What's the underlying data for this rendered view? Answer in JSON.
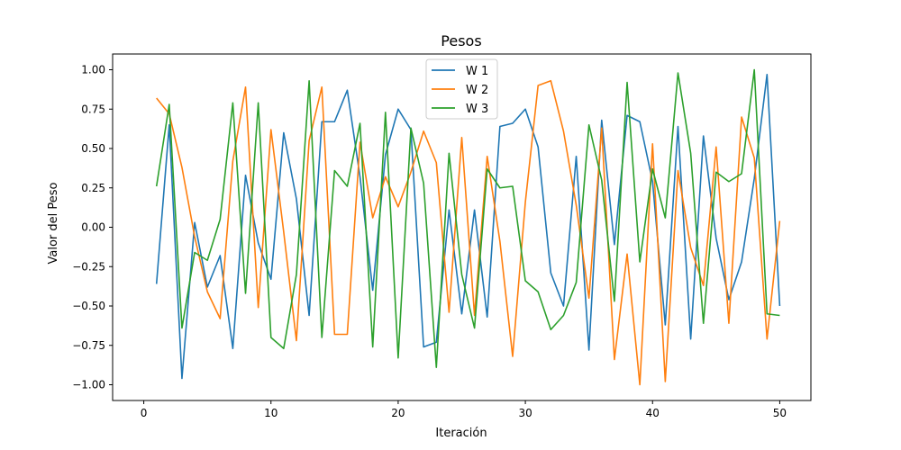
{
  "chart_data": {
    "type": "line",
    "title": "Pesos",
    "xlabel": "Iteración",
    "ylabel": "Valor del Peso",
    "xlim": [
      -2.45,
      52.45
    ],
    "ylim": [
      -1.1,
      1.1
    ],
    "xticks": [
      0,
      10,
      20,
      30,
      40,
      50
    ],
    "yticks": [
      -1.0,
      -0.75,
      -0.5,
      -0.25,
      0.0,
      0.25,
      0.5,
      0.75,
      1.0
    ],
    "ytick_labels": [
      "−1.00",
      "−0.75",
      "−0.50",
      "−0.25",
      "0.00",
      "0.25",
      "0.50",
      "0.75",
      "1.00"
    ],
    "xtick_labels": [
      "0",
      "10",
      "20",
      "30",
      "40",
      "50"
    ],
    "grid": false,
    "legend_position": "top-center",
    "x": [
      1,
      2,
      3,
      4,
      5,
      6,
      7,
      8,
      9,
      10,
      11,
      12,
      13,
      14,
      15,
      16,
      17,
      18,
      19,
      20,
      21,
      22,
      23,
      24,
      25,
      26,
      27,
      28,
      29,
      30,
      31,
      32,
      33,
      34,
      35,
      36,
      37,
      38,
      39,
      40,
      41,
      42,
      43,
      44,
      45,
      46,
      47,
      48,
      49,
      50
    ],
    "series": [
      {
        "name": "W 1",
        "color": "#1f77b4",
        "values": [
          -0.36,
          0.65,
          -0.96,
          0.03,
          -0.38,
          -0.18,
          -0.77,
          0.33,
          -0.1,
          -0.33,
          0.6,
          0.18,
          -0.56,
          0.67,
          0.67,
          0.87,
          0.32,
          -0.4,
          0.46,
          0.75,
          0.62,
          -0.76,
          -0.73,
          0.11,
          -0.55,
          0.11,
          -0.57,
          0.64,
          0.66,
          0.75,
          0.51,
          -0.29,
          -0.5,
          0.45,
          -0.78,
          0.68,
          -0.11,
          0.71,
          0.67,
          0.29,
          -0.62,
          0.64,
          -0.71,
          0.58,
          -0.07,
          -0.46,
          -0.22,
          0.31,
          0.97,
          -0.5
        ]
      },
      {
        "name": "W 2",
        "color": "#ff7f0e",
        "values": [
          0.82,
          0.72,
          0.38,
          -0.06,
          -0.41,
          -0.58,
          0.42,
          0.89,
          -0.51,
          0.62,
          -0.03,
          -0.72,
          0.55,
          0.89,
          -0.68,
          -0.68,
          0.54,
          0.06,
          0.32,
          0.13,
          0.35,
          0.61,
          0.41,
          -0.54,
          0.57,
          -0.56,
          0.45,
          -0.09,
          -0.82,
          0.16,
          0.9,
          0.93,
          0.61,
          0.14,
          -0.45,
          0.63,
          -0.84,
          -0.17,
          -1.0,
          0.53,
          -0.98,
          0.36,
          -0.13,
          -0.37,
          0.51,
          -0.61,
          0.7,
          0.44,
          -0.71,
          0.04
        ]
      },
      {
        "name": "W 3",
        "color": "#2ca02c",
        "values": [
          0.26,
          0.78,
          -0.64,
          -0.16,
          -0.21,
          0.05,
          0.79,
          -0.42,
          0.79,
          -0.7,
          -0.77,
          -0.3,
          0.93,
          -0.7,
          0.36,
          0.26,
          0.66,
          -0.76,
          0.73,
          -0.83,
          0.63,
          0.28,
          -0.89,
          0.47,
          -0.3,
          -0.64,
          0.37,
          0.25,
          0.26,
          -0.34,
          -0.41,
          -0.65,
          -0.56,
          -0.35,
          0.65,
          0.3,
          -0.47,
          0.92,
          -0.22,
          0.37,
          0.06,
          0.98,
          0.47,
          -0.61,
          0.35,
          0.29,
          0.34,
          1.0,
          -0.55,
          -0.56
        ]
      }
    ]
  }
}
